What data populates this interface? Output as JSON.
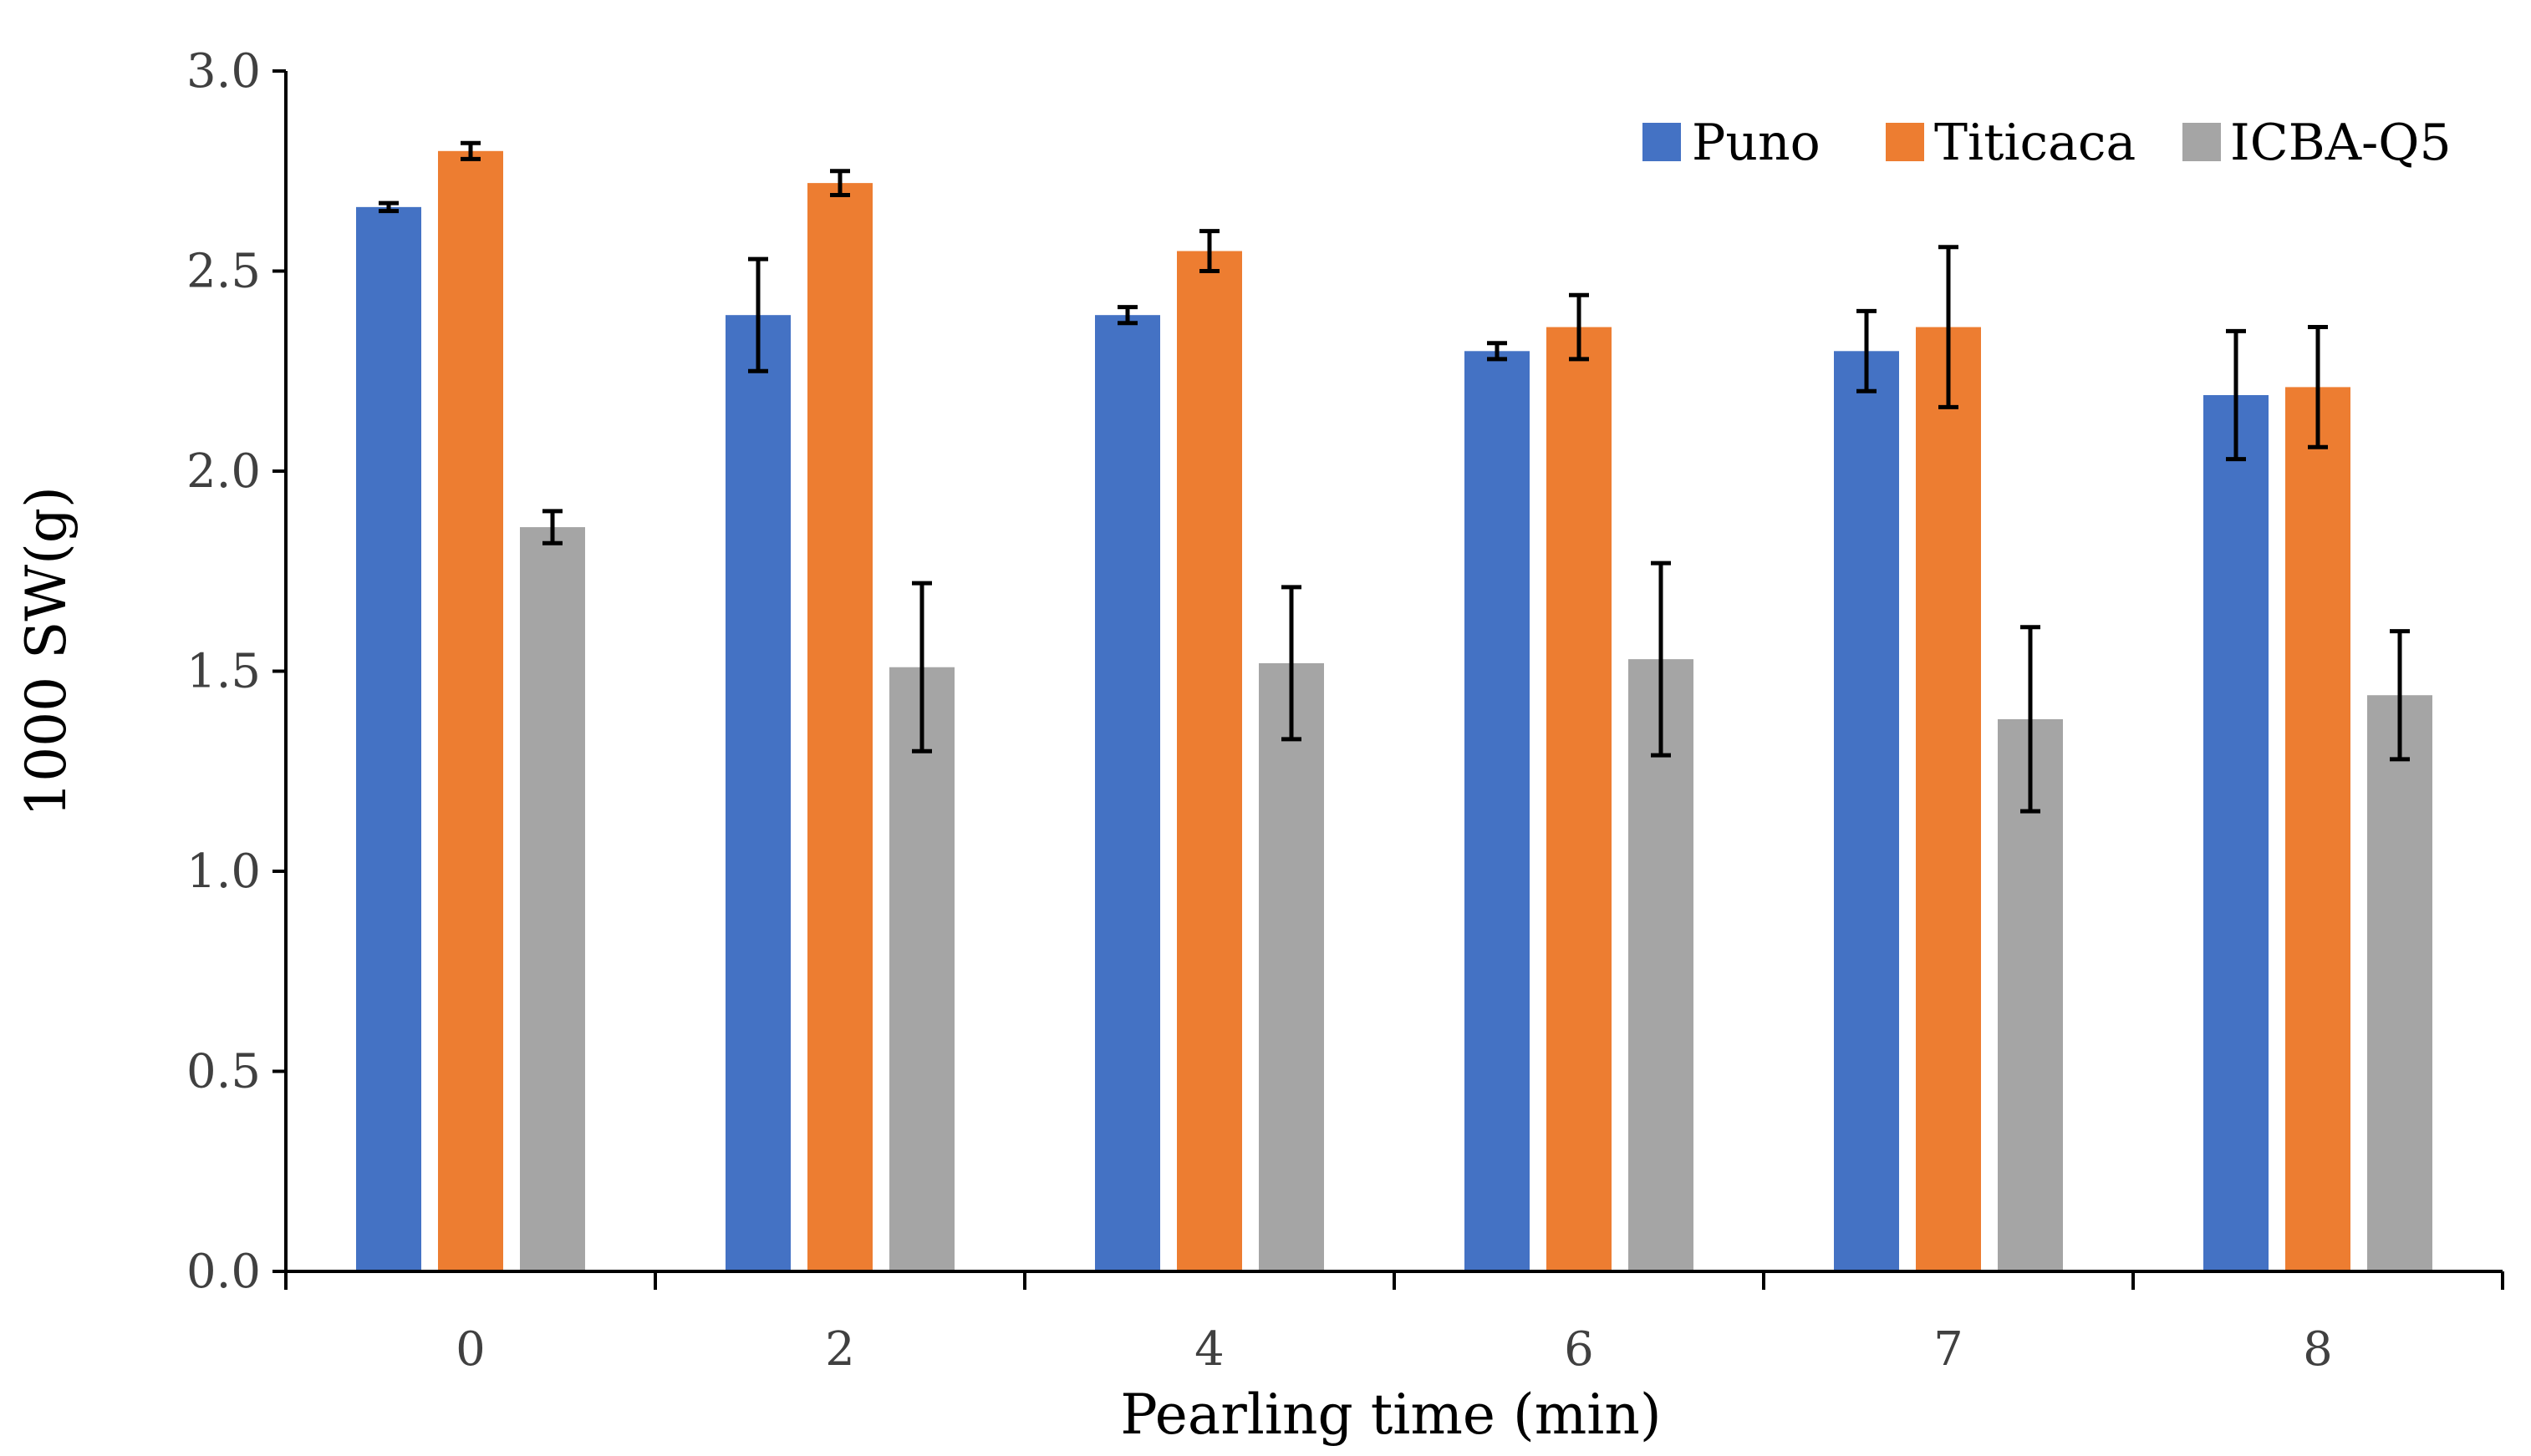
{
  "chart_data": {
    "type": "bar",
    "title": "",
    "xlabel": "Pearling time (min)",
    "ylabel": "1000 SW(g)",
    "ylim": [
      0,
      3.0
    ],
    "yticks": [
      0.0,
      0.5,
      1.0,
      1.5,
      2.0,
      2.5,
      3.0
    ],
    "ytick_labels": [
      "0.0",
      "0.5",
      "1.0",
      "1.5",
      "2.0",
      "2.5",
      "3.0"
    ],
    "categories": [
      "0",
      "2",
      "4",
      "6",
      "7",
      "8"
    ],
    "grid": false,
    "legend_position": "top-right",
    "series": [
      {
        "name": "Puno",
        "color": "#4472c4",
        "values": [
          2.66,
          2.39,
          2.39,
          2.3,
          2.3,
          2.19
        ],
        "errors": [
          0.01,
          0.14,
          0.02,
          0.02,
          0.1,
          0.16
        ]
      },
      {
        "name": "Titicaca",
        "color": "#ed7d31",
        "values": [
          2.8,
          2.72,
          2.55,
          2.36,
          2.36,
          2.21
        ],
        "errors": [
          0.02,
          0.03,
          0.05,
          0.08,
          0.2,
          0.15
        ]
      },
      {
        "name": "ICBA-Q5",
        "color": "#a5a5a5",
        "values": [
          1.86,
          1.51,
          1.52,
          1.53,
          1.38,
          1.44
        ],
        "errors": [
          0.04,
          0.21,
          0.19,
          0.24,
          0.23,
          0.16
        ]
      }
    ]
  }
}
